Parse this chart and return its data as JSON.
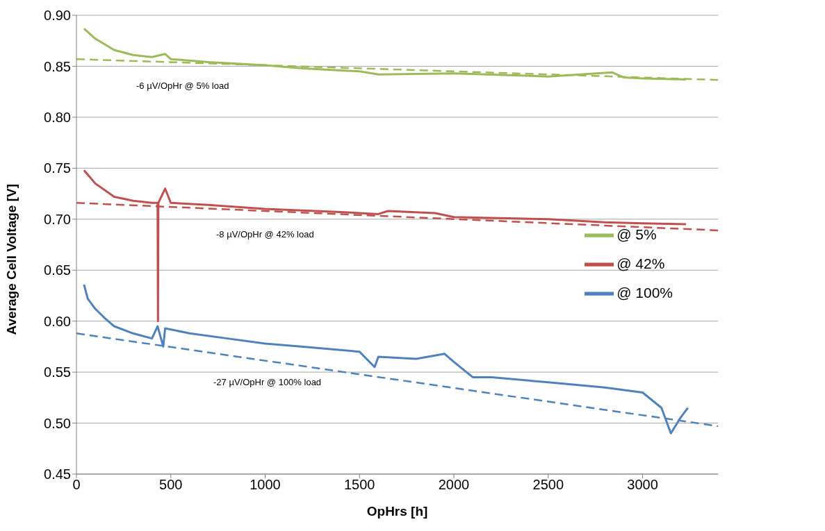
{
  "chart_data": {
    "type": "line",
    "xlabel": "OpHrs [h]",
    "ylabel": "Average Cell Voltage [V]",
    "xlim": [
      0,
      3400
    ],
    "xticks": [
      0,
      500,
      1000,
      1500,
      2000,
      2500,
      3000
    ],
    "ylim": [
      0.45,
      0.9
    ],
    "yticks": [
      0.45,
      {
        "value": 0.5,
        "label": "0.50"
      },
      0.55,
      {
        "value": 0.6,
        "label": "0.60"
      },
      0.65,
      {
        "value": 0.7,
        "label": "0.70"
      },
      0.75,
      {
        "value": 0.8,
        "label": "0.80"
      },
      0.85,
      {
        "value": 0.9,
        "label": "0.90"
      }
    ],
    "grid": "y",
    "legend": "right",
    "marker": "none",
    "line_style": "solid",
    "series": [
      {
        "name": "@ 5%",
        "color": "#9bbb59",
        "x": [
          40,
          100,
          200,
          300,
          400,
          470,
          500,
          700,
          1000,
          1200,
          1500,
          1600,
          2000,
          2500,
          2840,
          2900,
          3000,
          3230
        ],
        "values": [
          0.887,
          0.877,
          0.866,
          0.861,
          0.859,
          0.862,
          0.857,
          0.854,
          0.851,
          0.848,
          0.845,
          0.842,
          0.843,
          0.84,
          0.844,
          0.839,
          0.838,
          0.837
        ]
      },
      {
        "name": "@ 42%",
        "color": "#c0504d",
        "x": [
          40,
          100,
          200,
          300,
          400,
          430,
          432,
          434,
          470,
          500,
          700,
          1000,
          1400,
          1600,
          1650,
          1900,
          2000,
          2500,
          2800,
          3000,
          3230
        ],
        "values": [
          0.748,
          0.735,
          0.722,
          0.718,
          0.716,
          0.716,
          0.6,
          0.716,
          0.73,
          0.716,
          0.714,
          0.71,
          0.707,
          0.705,
          0.708,
          0.706,
          0.702,
          0.7,
          0.697,
          0.696,
          0.695
        ]
      },
      {
        "name": "@ 100%",
        "color": "#4f81bd",
        "x": [
          40,
          60,
          100,
          150,
          200,
          300,
          400,
          430,
          460,
          470,
          600,
          800,
          1000,
          1200,
          1500,
          1580,
          1600,
          1800,
          1950,
          2000,
          2100,
          2200,
          2500,
          2800,
          3000,
          3100,
          3150,
          3200,
          3240
        ],
        "values": [
          0.636,
          0.622,
          0.612,
          0.603,
          0.595,
          0.588,
          0.583,
          0.595,
          0.575,
          0.593,
          0.588,
          0.583,
          0.578,
          0.575,
          0.57,
          0.555,
          0.565,
          0.563,
          0.568,
          0.56,
          0.545,
          0.545,
          0.54,
          0.535,
          0.53,
          0.515,
          0.49,
          0.505,
          0.515
        ]
      },
      {
        "type": "line",
        "line_style": "dashed",
        "color": "#9bbb59",
        "x": [
          0,
          3400
        ],
        "values": [
          0.857,
          0.8366
        ]
      },
      {
        "type": "line",
        "line_style": "dashed",
        "color": "#c0504d",
        "x": [
          0,
          3400
        ],
        "values": [
          0.716,
          0.689
        ]
      },
      {
        "type": "line",
        "line_style": "dashed",
        "color": "#4f81bd",
        "x": [
          0,
          3400
        ],
        "values": [
          0.588,
          0.497
        ]
      }
    ],
    "annotations": [
      "-6 µV/OpHr @ 5% load",
      "-8 µV/OpHr @ 42% load",
      "-27 µV/OpHr @ 100% load"
    ]
  }
}
